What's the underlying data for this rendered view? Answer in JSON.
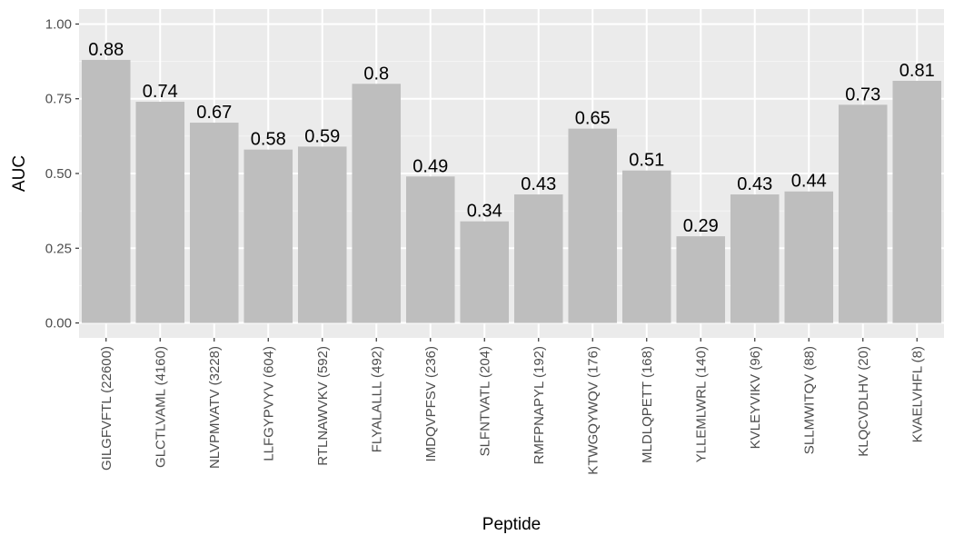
{
  "chart_data": {
    "type": "bar",
    "xlabel": "Peptide",
    "ylabel": "AUC",
    "ylim": [
      0,
      1
    ],
    "yticks": [
      "0.00",
      "0.25",
      "0.50",
      "0.75",
      "1.00"
    ],
    "ytick_values": [
      0,
      0.25,
      0.5,
      0.75,
      1.0
    ],
    "categories": [
      "GILGFVFTL (22600)",
      "GLCTLVAML (4160)",
      "NLVPMVATV (3228)",
      "LLFGYPVYV (604)",
      "RTLNAWVKV (592)",
      "FLYALALLL (492)",
      "IMDQVPFSV (236)",
      "SLFNTVATL (204)",
      "RMFPNAPYL (192)",
      "KTWGQYWQV (176)",
      "MLDLQPETT (168)",
      "YLLEMLWRL (140)",
      "KVLEYVIKV (96)",
      "SLLMWITQV (88)",
      "KLQCVDLHV (20)",
      "KVAELVHFL (8)"
    ],
    "values": [
      0.88,
      0.74,
      0.67,
      0.58,
      0.59,
      0.8,
      0.49,
      0.34,
      0.43,
      0.65,
      0.51,
      0.29,
      0.43,
      0.44,
      0.73,
      0.81
    ],
    "value_labels": [
      "0.88",
      "0.74",
      "0.67",
      "0.58",
      "0.59",
      "0.8",
      "0.49",
      "0.34",
      "0.43",
      "0.65",
      "0.51",
      "0.29",
      "0.43",
      "0.44",
      "0.73",
      "0.81"
    ],
    "grid": true,
    "legend": "none",
    "colors": {
      "panel_background": "#ebebeb",
      "grid_major": "#ffffff",
      "grid_minor": "#f5f5f5",
      "bar_fill": "#bebebe",
      "tick_text": "#4d4d4d",
      "label_text": "#000000"
    }
  }
}
